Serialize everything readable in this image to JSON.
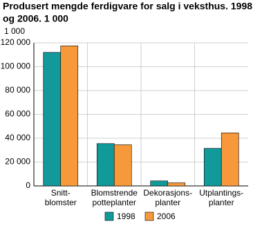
{
  "chart_data": {
    "type": "bar",
    "title": [
      "Produsert mengde ferdigvare for salg i veksthus. 1998",
      "og 2006. 1 000"
    ],
    "y_label": "1 000",
    "categories": [
      [
        "Snitt-",
        "blomster"
      ],
      [
        "Blomstrende",
        "potteplanter"
      ],
      [
        "Dekorasjons-",
        "planter"
      ],
      [
        "Utplantings-",
        "planter"
      ]
    ],
    "series": [
      {
        "name": "1998",
        "color": "#12999a",
        "values": [
          112000,
          35500,
          4200,
          31500
        ]
      },
      {
        "name": "2006",
        "color": "#f7993a",
        "values": [
          117500,
          34500,
          2600,
          44500
        ]
      }
    ],
    "ylim": [
      0,
      120000
    ],
    "yticks": [
      0,
      {
        "value": 20000,
        "label": "20 000"
      },
      {
        "value": 40000,
        "label": "40 000"
      },
      {
        "value": 60000,
        "label": "60 000"
      },
      {
        "value": 80000,
        "label": "80 000"
      },
      {
        "value": 100000,
        "label": "100 000"
      },
      {
        "value": 120000,
        "label": "120 000"
      }
    ],
    "grid": true
  }
}
